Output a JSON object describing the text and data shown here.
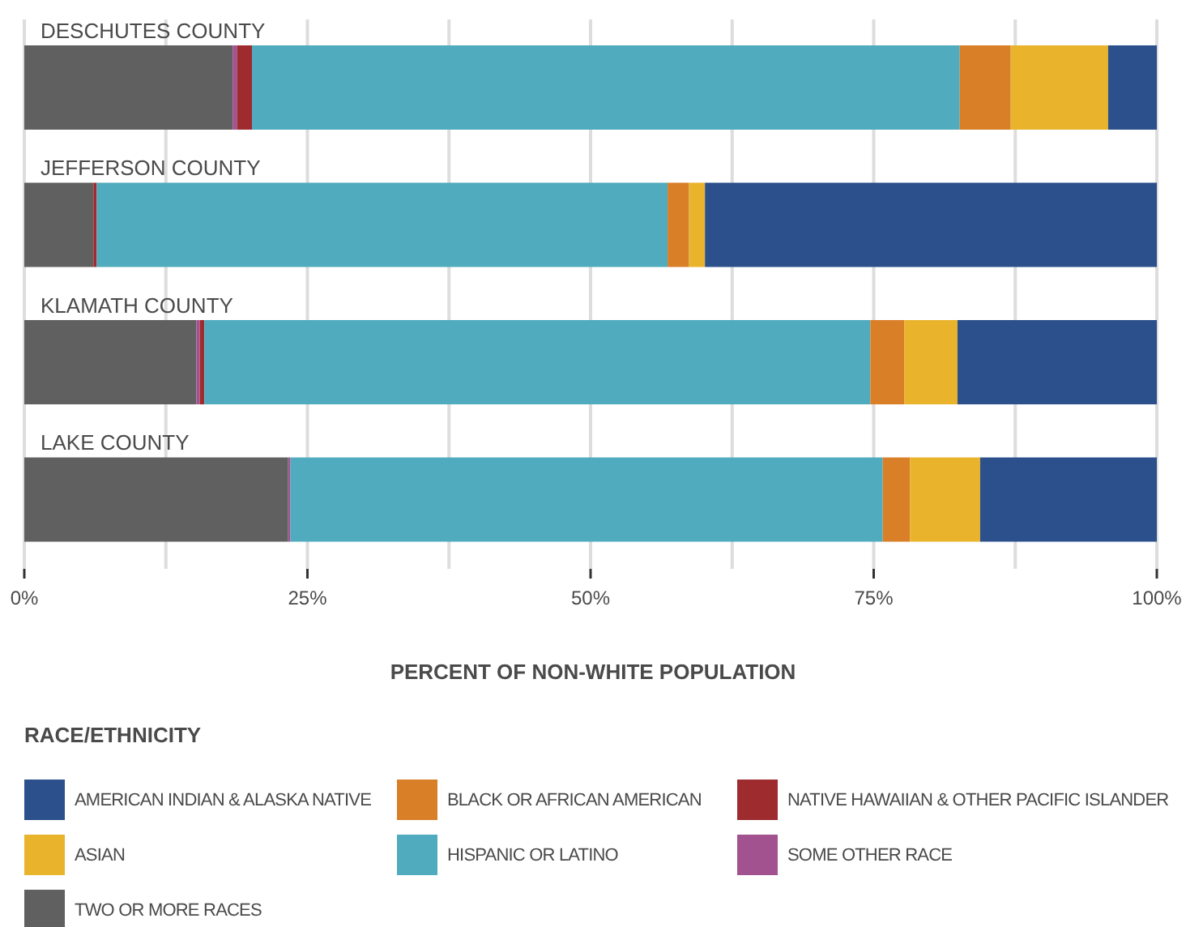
{
  "chart_data": {
    "type": "bar",
    "orientation": "horizontal",
    "stacked": true,
    "xlabel": "PERCENT OF NON-WHITE POPULATION",
    "legend_title": "RACE/ETHNICITY",
    "legend": "bottom",
    "grid": "x",
    "categories": [
      "DESCHUTES COUNTY",
      "JEFFERSON COUNTY",
      "KLAMATH COUNTY",
      "LAKE COUNTY"
    ],
    "xlim": [
      0,
      100
    ],
    "xticks": [
      {
        "value": 0,
        "label": "0%"
      },
      {
        "value": 12.5,
        "label": null
      },
      {
        "value": 25,
        "label": "25%"
      },
      {
        "value": 37.5,
        "label": null
      },
      {
        "value": 50,
        "label": "50%"
      },
      {
        "value": 62.5,
        "label": null
      },
      {
        "value": 75,
        "label": "75%"
      },
      {
        "value": 87.5,
        "label": null
      },
      {
        "value": 100,
        "label": "100%"
      }
    ],
    "series": [
      {
        "name": "TWO OR MORE RACES",
        "color": "#606060",
        "values": [
          18.4,
          6.1,
          15.2,
          23.3
        ]
      },
      {
        "name": "SOME OTHER RACE",
        "color": "#a2528f",
        "values": [
          0.4,
          0,
          0.3,
          0.2
        ]
      },
      {
        "name": "NATIVE HAWAIIAN & OTHER PACIFIC ISLANDER",
        "color": "#9e2c2f",
        "values": [
          1.3,
          0.3,
          0.4,
          0
        ]
      },
      {
        "name": "HISPANIC OR LATINO",
        "color": "#50abbe",
        "values": [
          62.5,
          50.4,
          58.8,
          52.3
        ]
      },
      {
        "name": "BLACK OR AFRICAN AMERICAN",
        "color": "#d97f28",
        "values": [
          4.5,
          1.9,
          3.0,
          2.4
        ]
      },
      {
        "name": "ASIAN",
        "color": "#e9b32c",
        "values": [
          8.6,
          1.4,
          4.7,
          6.2
        ]
      },
      {
        "name": "AMERICAN INDIAN & ALASKA NATIVE",
        "color": "#2c508b",
        "values": [
          4.3,
          39.9,
          17.6,
          15.6
        ]
      }
    ]
  }
}
